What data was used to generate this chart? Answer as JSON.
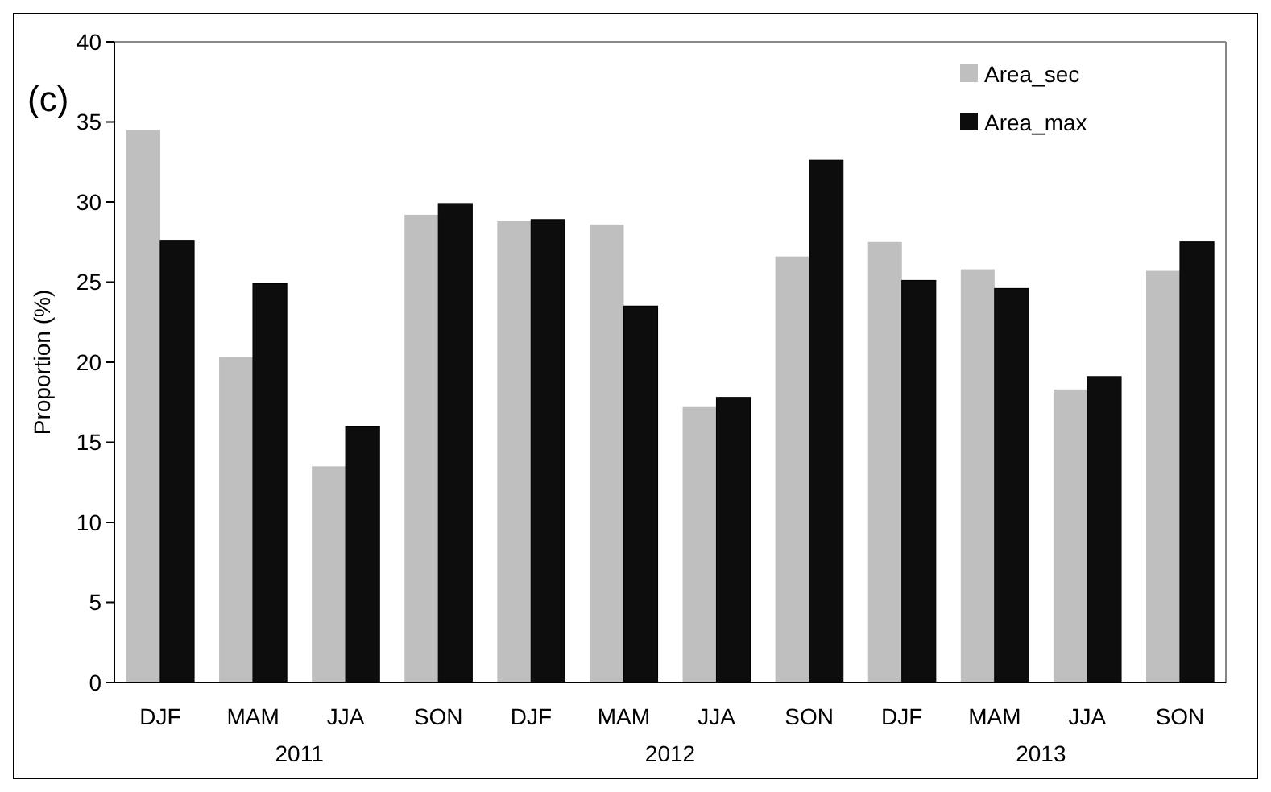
{
  "chart_data": {
    "type": "bar",
    "title": "(c)",
    "ylabel": "Proportion (%)",
    "categories": [
      "DJF",
      "MAM",
      "JJA",
      "SON",
      "DJF",
      "MAM",
      "JJA",
      "SON",
      "DJF",
      "MAM",
      "JJA",
      "SON"
    ],
    "annotations": [
      "2011",
      "2012",
      "2013"
    ],
    "series": [
      {
        "name": "Area_sec",
        "color": "#bfbfbf",
        "values": [
          34.5,
          20.3,
          13.5,
          29.2,
          28.8,
          28.6,
          17.2,
          26.6,
          27.5,
          25.8,
          18.3,
          25.7
        ]
      },
      {
        "name": "Area_max",
        "color": "#0d0d0d",
        "values": [
          27.6,
          24.9,
          16.0,
          29.9,
          28.9,
          23.5,
          17.8,
          32.6,
          25.1,
          24.6,
          19.1,
          27.5
        ]
      }
    ],
    "ylim": [
      0,
      40
    ],
    "yticks": [
      0,
      5,
      10,
      15,
      20,
      25,
      30,
      35,
      40
    ],
    "legend": "top right"
  }
}
